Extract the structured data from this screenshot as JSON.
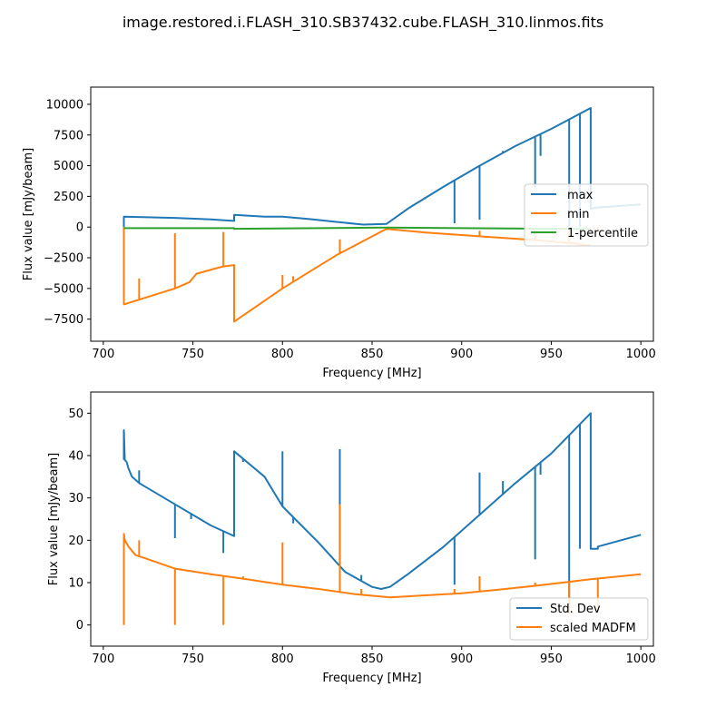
{
  "figure": {
    "title": "image.restored.i.FLASH_310.SB37432.cube.FLASH_310.linmos.fits"
  },
  "chart_data": [
    {
      "type": "line",
      "xlabel": "Frequency [MHz]",
      "ylabel": "Flux value [mJy/beam]",
      "xlim": [
        693,
        1007
      ],
      "ylim": [
        -9300,
        11400
      ],
      "xticks": [
        700,
        750,
        800,
        850,
        900,
        950,
        1000
      ],
      "yticks": [
        -7500,
        -5000,
        -2500,
        0,
        2500,
        5000,
        7500,
        10000
      ],
      "legend_position": "center-right",
      "grid": false,
      "series": [
        {
          "name": "max",
          "color": "#1f77b4",
          "x": [
            711.5,
            711.5,
            740,
            760,
            773,
            773,
            790,
            800,
            815,
            830,
            845,
            858,
            870,
            890,
            910,
            930,
            950,
            972,
            972,
            976,
            1000
          ],
          "y": [
            0,
            850,
            750,
            620,
            500,
            1000,
            850,
            850,
            650,
            420,
            200,
            250,
            1500,
            3300,
            5000,
            6600,
            8000,
            9700,
            1500,
            1600,
            1850
          ],
          "spikes": [
            {
              "x": 896,
              "y": 300
            },
            {
              "x": 910,
              "y": 600
            },
            {
              "x": 941,
              "y": 3200
            },
            {
              "x": 944,
              "y": 5800
            },
            {
              "x": 960,
              "y": 0
            },
            {
              "x": 966,
              "y": 0
            },
            {
              "x": 923,
              "y": 6200
            }
          ]
        },
        {
          "name": "min",
          "color": "#ff7f0e",
          "x": [
            711.5,
            711.5,
            740,
            748,
            752,
            767,
            767,
            773,
            773,
            800,
            830,
            858,
            880,
            900,
            920,
            940,
            960,
            972
          ],
          "y": [
            0,
            -6300,
            -5000,
            -4500,
            -3800,
            -3200,
            -3200,
            -3100,
            -7700,
            -5000,
            -2300,
            -150,
            -450,
            -650,
            -850,
            -1050,
            -1300,
            -1500
          ],
          "spikes": [
            {
              "x": 720,
              "y": -4200
            },
            {
              "x": 740,
              "y": -500
            },
            {
              "x": 767,
              "y": -400
            },
            {
              "x": 800,
              "y": -3900
            },
            {
              "x": 806,
              "y": -4000
            },
            {
              "x": 832,
              "y": -1000
            },
            {
              "x": 910,
              "y": -300
            },
            {
              "x": 941,
              "y": -200
            },
            {
              "x": 960,
              "y": -300
            },
            {
              "x": 976,
              "y": -200
            }
          ]
        },
        {
          "name": "1-percentile",
          "color": "#2ca02c",
          "x": [
            711.5,
            773,
            773,
            858,
            972
          ],
          "y": [
            -90,
            -90,
            -140,
            -40,
            -160
          ],
          "spikes": []
        }
      ]
    },
    {
      "type": "line",
      "xlabel": "Frequency [MHz]",
      "ylabel": "Flux value [mJy/beam]",
      "xlim": [
        693,
        1007
      ],
      "ylim": [
        -5,
        55
      ],
      "xticks": [
        700,
        750,
        800,
        850,
        900,
        950,
        1000
      ],
      "yticks": [
        0,
        10,
        20,
        30,
        40,
        50
      ],
      "legend_position": "lower-right",
      "grid": false,
      "series": [
        {
          "name": "Std. Dev",
          "color": "#1f77b4",
          "x": [
            711.5,
            711.5,
            712,
            713,
            714,
            716,
            720,
            740,
            760,
            773,
            773,
            790,
            800,
            820,
            835,
            850,
            855,
            860,
            870,
            890,
            910,
            930,
            950,
            972,
            972,
            976,
            976,
            1000
          ],
          "y": [
            39,
            46,
            39,
            38.5,
            37,
            35,
            33.5,
            28.5,
            23.5,
            21,
            41,
            35,
            28,
            19.5,
            12.5,
            9,
            8.5,
            9,
            12,
            18.5,
            26,
            33.5,
            40.5,
            50,
            18,
            18,
            18.5,
            21.3
          ],
          "spikes": [
            {
              "x": 720,
              "y": 36.5
            },
            {
              "x": 740,
              "y": 20.5
            },
            {
              "x": 749,
              "y": 25
            },
            {
              "x": 767,
              "y": 17
            },
            {
              "x": 778,
              "y": 38.5
            },
            {
              "x": 800,
              "y": 41
            },
            {
              "x": 806,
              "y": 24
            },
            {
              "x": 832,
              "y": 41.5
            },
            {
              "x": 844,
              "y": 11.8
            },
            {
              "x": 896,
              "y": 9.5
            },
            {
              "x": 910,
              "y": 36
            },
            {
              "x": 923,
              "y": 34
            },
            {
              "x": 941,
              "y": 15.5
            },
            {
              "x": 944,
              "y": 35.5
            },
            {
              "x": 960,
              "y": 5
            },
            {
              "x": 966,
              "y": 18
            }
          ]
        },
        {
          "name": "scaled MADFM",
          "color": "#ff7f0e",
          "x": [
            711.5,
            711.5,
            712,
            714,
            718,
            725,
            740,
            760,
            780,
            800,
            820,
            840,
            860,
            880,
            900,
            920,
            940,
            960,
            972,
            1000
          ],
          "y": [
            0,
            21.5,
            20,
            18.5,
            16.5,
            15.5,
            13.3,
            12,
            10.8,
            9.5,
            8.5,
            7.3,
            6.5,
            7,
            7.5,
            8.3,
            9.2,
            10.2,
            10.8,
            12
          ],
          "spikes": [
            {
              "x": 720,
              "y": 20
            },
            {
              "x": 740,
              "y": 0
            },
            {
              "x": 767,
              "y": 0
            },
            {
              "x": 778,
              "y": 11.5
            },
            {
              "x": 800,
              "y": 19.5
            },
            {
              "x": 832,
              "y": 28.5
            },
            {
              "x": 844,
              "y": 8.5
            },
            {
              "x": 896,
              "y": 8.5
            },
            {
              "x": 910,
              "y": 11.5
            },
            {
              "x": 941,
              "y": 10
            },
            {
              "x": 960,
              "y": 2.5
            },
            {
              "x": 976,
              "y": 3
            }
          ]
        }
      ]
    }
  ]
}
